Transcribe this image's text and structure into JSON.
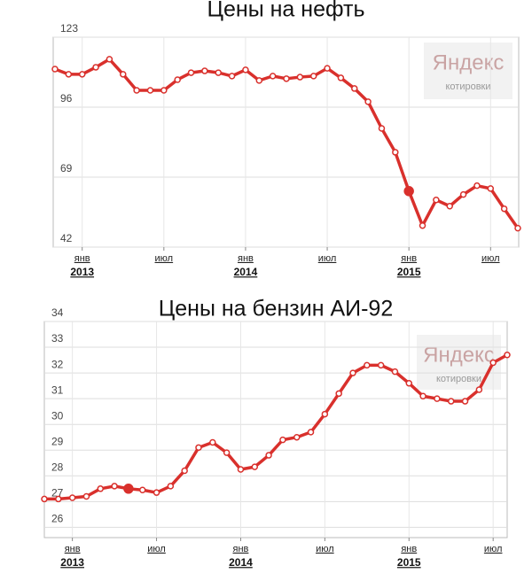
{
  "chart_data": [
    {
      "type": "line",
      "title": "Цены на нефть",
      "categories": [
        null,
        null,
        "янв",
        null,
        null,
        null,
        null,
        null,
        "июл",
        null,
        null,
        null,
        null,
        null,
        "янв",
        null,
        null,
        null,
        null,
        null,
        "июл",
        null,
        null,
        null,
        null,
        null,
        "янв",
        null,
        null,
        null,
        null,
        null,
        "июл",
        null,
        null
      ],
      "years": [
        null,
        null,
        "2013",
        null,
        null,
        null,
        null,
        null,
        null,
        null,
        null,
        null,
        null,
        null,
        "2014",
        null,
        null,
        null,
        null,
        null,
        null,
        null,
        null,
        null,
        null,
        null,
        "2015",
        null,
        null,
        null,
        null,
        null,
        null,
        null,
        null
      ],
      "series": [
        {
          "name": null,
          "color": "#d9302c",
          "values": [
            110.7,
            108.7,
            108.7,
            111.4,
            114.5,
            108.7,
            102.5,
            102.5,
            102.5,
            106.6,
            109.3,
            110,
            109.3,
            108,
            110.4,
            106.3,
            108,
            107,
            107.6,
            108,
            111,
            107.3,
            103.2,
            98.1,
            87.8,
            78.6,
            63.6,
            50.3,
            60.2,
            57.8,
            62.3,
            65.7,
            64.6,
            56.8,
            49.3
          ]
        }
      ],
      "highlight_index": 26,
      "ylim": [
        42,
        123
      ],
      "yticks": [
        42,
        69,
        96,
        123
      ],
      "grid": true,
      "watermark": [
        "Яндекс",
        "котировки"
      ]
    },
    {
      "type": "line",
      "title": "Цены на бензин АИ-92",
      "categories": [
        null,
        null,
        "янв",
        null,
        null,
        null,
        null,
        null,
        "июл",
        null,
        null,
        null,
        null,
        null,
        "янв",
        null,
        null,
        null,
        null,
        null,
        "июл",
        null,
        null,
        null,
        null,
        null,
        "янв",
        null,
        null,
        null,
        null,
        null,
        "июл",
        null
      ],
      "years": [
        null,
        null,
        "2013",
        null,
        null,
        null,
        null,
        null,
        null,
        null,
        null,
        null,
        null,
        null,
        "2014",
        null,
        null,
        null,
        null,
        null,
        null,
        null,
        null,
        null,
        null,
        null,
        "2015",
        null,
        null,
        null,
        null,
        null,
        null,
        null
      ],
      "series": [
        {
          "name": null,
          "color": "#d9302c",
          "values": [
            27.1,
            27.1,
            27.15,
            27.2,
            27.5,
            27.6,
            27.5,
            27.45,
            27.35,
            27.6,
            28.2,
            29.1,
            29.3,
            28.9,
            28.25,
            28.35,
            28.8,
            29.4,
            29.5,
            29.7,
            30.4,
            31.2,
            32,
            32.3,
            32.3,
            32.05,
            31.6,
            31.1,
            31,
            30.9,
            30.9,
            31.35,
            32.4,
            32.7
          ]
        }
      ],
      "highlight_index": 6,
      "ylim": [
        25.6,
        34
      ],
      "yticks": [
        26,
        27,
        28,
        29,
        30,
        31,
        32,
        33,
        34
      ],
      "grid": true,
      "watermark": [
        "Яндекс",
        "котировки"
      ]
    }
  ]
}
